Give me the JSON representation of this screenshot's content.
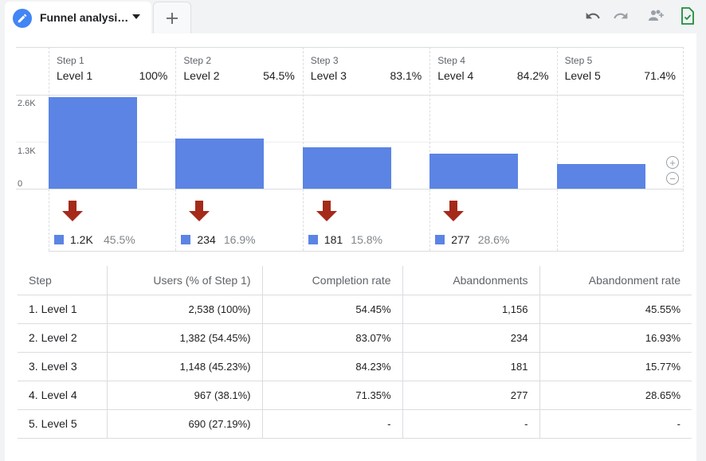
{
  "tab": {
    "title": "Funnel analysi…"
  },
  "toolbar": {
    "undo_icon": "undo-icon",
    "redo_icon": "redo-icon",
    "share_icon": "share-users-icon",
    "save_icon": "save-check-icon"
  },
  "colors": {
    "bar": "#5b84e4",
    "arrow": "#a52a1a",
    "accent": "#4285f4"
  },
  "chart_data": {
    "type": "bar",
    "yticks": [
      "2.6K",
      "1.3K",
      "0"
    ],
    "ylim": [
      0,
      2600
    ],
    "steps": [
      {
        "step": "Step 1",
        "level": "Level 1",
        "pct": "100%",
        "value": 2538,
        "drop_value": "1.2K",
        "drop_pct": "45.5%"
      },
      {
        "step": "Step 2",
        "level": "Level 2",
        "pct": "54.5%",
        "value": 1382,
        "drop_value": "234",
        "drop_pct": "16.9%"
      },
      {
        "step": "Step 3",
        "level": "Level 3",
        "pct": "83.1%",
        "value": 1148,
        "drop_value": "181",
        "drop_pct": "15.8%"
      },
      {
        "step": "Step 4",
        "level": "Level 4",
        "pct": "84.2%",
        "value": 967,
        "drop_value": "277",
        "drop_pct": "28.6%"
      },
      {
        "step": "Step 5",
        "level": "Level 5",
        "pct": "71.4%",
        "value": 690,
        "drop_value": "",
        "drop_pct": ""
      }
    ]
  },
  "table": {
    "headers": [
      "Step",
      "Users (% of Step 1)",
      "Completion rate",
      "Abandonments",
      "Abandonment rate"
    ],
    "rows": [
      [
        "1. Level 1",
        "2,538 (100%)",
        "54.45%",
        "1,156",
        "45.55%"
      ],
      [
        "2. Level 2",
        "1,382 (54.45%)",
        "83.07%",
        "234",
        "16.93%"
      ],
      [
        "3. Level 3",
        "1,148 (45.23%)",
        "84.23%",
        "181",
        "15.77%"
      ],
      [
        "4. Level 4",
        "967 (38.1%)",
        "71.35%",
        "277",
        "28.65%"
      ],
      [
        "5. Level 5",
        "690 (27.19%)",
        "-",
        "-",
        "-"
      ]
    ]
  }
}
